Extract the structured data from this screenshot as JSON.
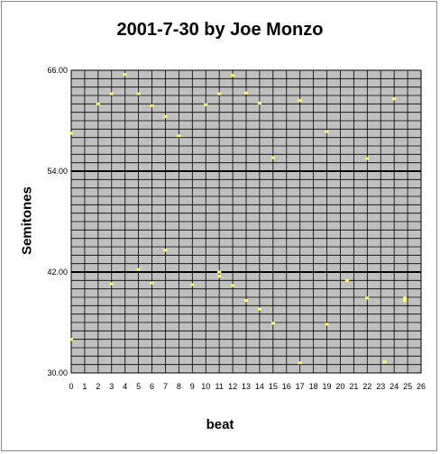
{
  "chart_data": {
    "type": "scatter",
    "title": "2001-7-30 by Joe Monzo",
    "xlabel": "beat",
    "ylabel": "Semitones",
    "xlim": [
      0,
      26
    ],
    "ylim": [
      30,
      66
    ],
    "x_ticks": [
      "0",
      "1",
      "2",
      "3",
      "4",
      "5",
      "6",
      "7",
      "8",
      "9",
      "10",
      "11",
      "12",
      "13",
      "14",
      "15",
      "16",
      "17",
      "18",
      "19",
      "20",
      "21",
      "22",
      "23",
      "24",
      "25",
      "26"
    ],
    "y_ticks": [
      "30.00",
      "42.00",
      "54.00",
      "66.00"
    ],
    "major_y_lines": [
      42,
      54
    ],
    "grid": true,
    "plot_background": "#c0c0c0",
    "marker_color": "#ffff66",
    "series": [
      {
        "points": [
          {
            "x": 0,
            "y": 58.5
          },
          {
            "x": 0,
            "y": 34.0
          },
          {
            "x": 2,
            "y": 62.0
          },
          {
            "x": 3,
            "y": 63.2
          },
          {
            "x": 3,
            "y": 40.6
          },
          {
            "x": 4,
            "y": 65.5
          },
          {
            "x": 5,
            "y": 63.2
          },
          {
            "x": 5,
            "y": 42.3
          },
          {
            "x": 6,
            "y": 61.8
          },
          {
            "x": 6,
            "y": 40.7
          },
          {
            "x": 7,
            "y": 60.5
          },
          {
            "x": 7,
            "y": 44.6
          },
          {
            "x": 8,
            "y": 58.2
          },
          {
            "x": 9,
            "y": 40.5
          },
          {
            "x": 10,
            "y": 61.9
          },
          {
            "x": 11,
            "y": 63.2
          },
          {
            "x": 11,
            "y": 42.0
          },
          {
            "x": 11,
            "y": 41.5
          },
          {
            "x": 12,
            "y": 65.4
          },
          {
            "x": 12,
            "y": 40.4
          },
          {
            "x": 13,
            "y": 63.3
          },
          {
            "x": 13,
            "y": 38.6
          },
          {
            "x": 14,
            "y": 62.1
          },
          {
            "x": 14,
            "y": 37.6
          },
          {
            "x": 15,
            "y": 55.6
          },
          {
            "x": 15,
            "y": 35.9
          },
          {
            "x": 17,
            "y": 62.4
          },
          {
            "x": 17,
            "y": 31.2
          },
          {
            "x": 19,
            "y": 58.7
          },
          {
            "x": 19,
            "y": 35.8
          },
          {
            "x": 20.5,
            "y": 41.0
          },
          {
            "x": 22,
            "y": 55.5
          },
          {
            "x": 22,
            "y": 38.9
          },
          {
            "x": 23.3,
            "y": 31.3
          },
          {
            "x": 24,
            "y": 62.6
          },
          {
            "x": 24.8,
            "y": 38.9
          },
          {
            "x": 24.8,
            "y": 38.6
          }
        ]
      }
    ]
  }
}
